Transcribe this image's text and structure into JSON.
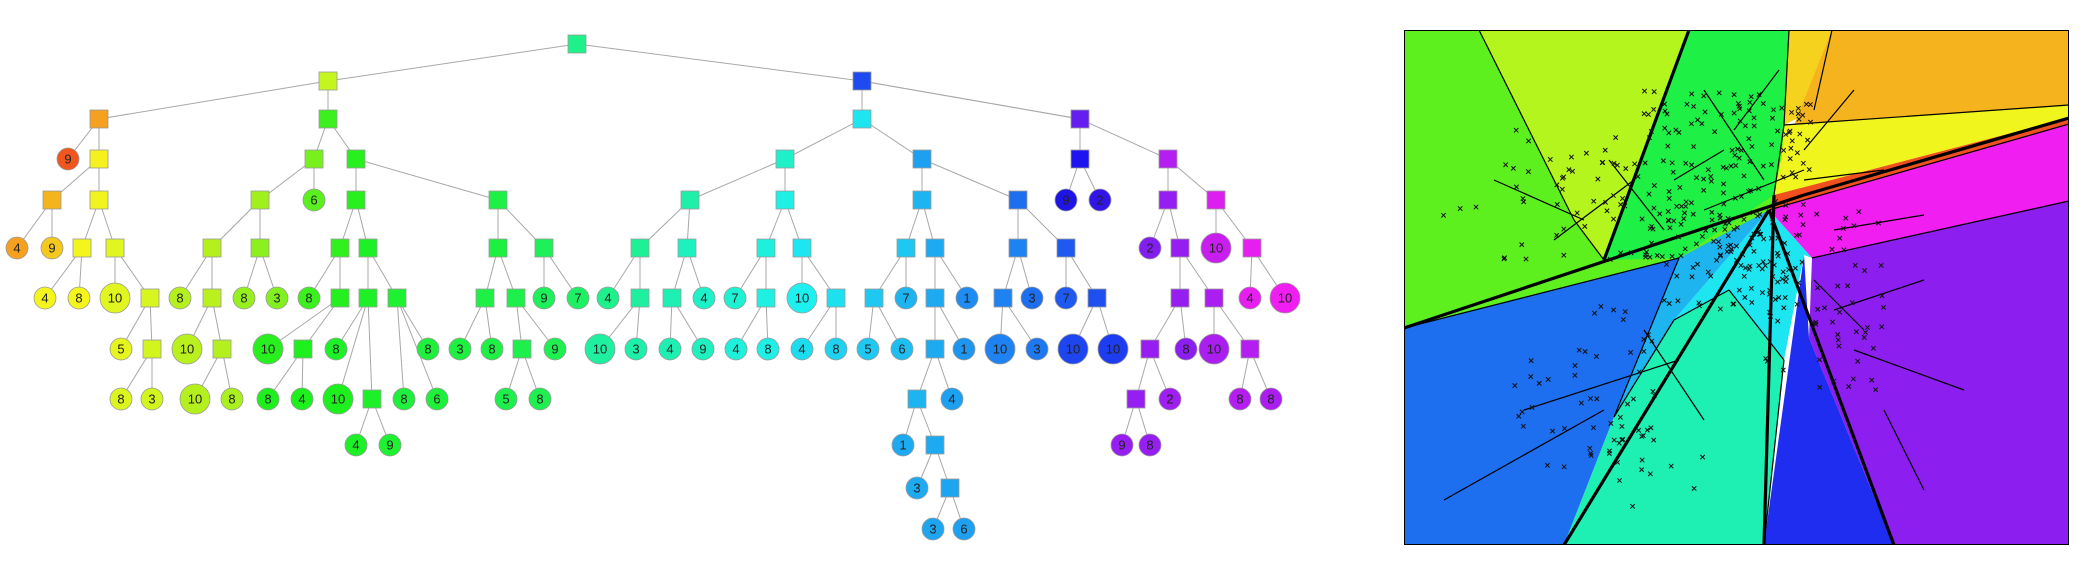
{
  "tree": {
    "nodes": [
      {
        "id": "root",
        "kind": "split",
        "color": "#1ef08a"
      },
      {
        "id": "L",
        "kind": "split",
        "color": "#c4f51e"
      },
      {
        "id": "R",
        "kind": "split",
        "color": "#1e4bf0"
      },
      {
        "id": "LL",
        "kind": "split",
        "color": "#f5a01e"
      },
      {
        "id": "LL_leaf9",
        "kind": "leaf",
        "label": "9",
        "color": "#f0561e"
      },
      {
        "id": "LLR",
        "kind": "split",
        "color": "#f5f01e"
      },
      {
        "id": "LLRL",
        "kind": "split",
        "color": "#f5b41e"
      },
      {
        "id": "l4a",
        "kind": "leaf",
        "label": "4",
        "color": "#f5a01e"
      },
      {
        "id": "l9a",
        "kind": "leaf",
        "label": "9",
        "color": "#f5c81e"
      },
      {
        "id": "LLRR",
        "kind": "split",
        "color": "#f0f51e"
      },
      {
        "id": "LLRRL",
        "kind": "split",
        "color": "#f5f51e"
      },
      {
        "id": "l4b",
        "kind": "leaf",
        "label": "4",
        "color": "#f5f51e"
      },
      {
        "id": "l8a",
        "kind": "leaf",
        "label": "8",
        "color": "#f5f51e"
      },
      {
        "id": "LLRRR",
        "kind": "split",
        "color": "#e1f51e"
      },
      {
        "id": "l10a",
        "kind": "leaf",
        "label": "10",
        "color": "#e1f51e"
      },
      {
        "id": "LLRRRR",
        "kind": "split",
        "color": "#d7f51e"
      },
      {
        "id": "l5a",
        "kind": "leaf",
        "label": "5",
        "color": "#e6f51e"
      },
      {
        "id": "LLRRRRR",
        "kind": "split",
        "color": "#d2f51e"
      },
      {
        "id": "l8b",
        "kind": "leaf",
        "label": "8",
        "color": "#dcf51e"
      },
      {
        "id": "l3a",
        "kind": "leaf",
        "label": "3",
        "color": "#d2f51e"
      },
      {
        "id": "LR",
        "kind": "split",
        "color": "#3cf01e"
      },
      {
        "id": "LRL",
        "kind": "split",
        "color": "#78f01e"
      },
      {
        "id": "LRLL",
        "kind": "split",
        "color": "#a0f01e"
      },
      {
        "id": "LRLLL",
        "kind": "split",
        "color": "#b4f01e"
      },
      {
        "id": "l8c",
        "kind": "leaf",
        "label": "8",
        "color": "#b4f01e"
      },
      {
        "id": "LRLLLR",
        "kind": "split",
        "color": "#b9f01e"
      },
      {
        "id": "l10b",
        "kind": "leaf",
        "label": "10",
        "color": "#b9f01e"
      },
      {
        "id": "LRLLLRR",
        "kind": "split",
        "color": "#b4f01e"
      },
      {
        "id": "l10c",
        "kind": "leaf",
        "label": "10",
        "color": "#b4f01e"
      },
      {
        "id": "l8d",
        "kind": "leaf",
        "label": "8",
        "color": "#aaf01e"
      },
      {
        "id": "LRLLR",
        "kind": "split",
        "color": "#8cf01e"
      },
      {
        "id": "l8e",
        "kind": "leaf",
        "label": "8",
        "color": "#96f01e"
      },
      {
        "id": "l3b",
        "kind": "leaf",
        "label": "3",
        "color": "#82f01e"
      },
      {
        "id": "l6a",
        "kind": "leaf",
        "label": "6",
        "color": "#5af01e"
      },
      {
        "id": "LRR",
        "kind": "split",
        "color": "#28f01e"
      },
      {
        "id": "LRRL",
        "kind": "split",
        "color": "#28f01e"
      },
      {
        "id": "LRRLL",
        "kind": "split",
        "color": "#32f01e"
      },
      {
        "id": "l8f",
        "kind": "leaf",
        "label": "8",
        "color": "#3cf01e"
      },
      {
        "id": "LRRLLR",
        "kind": "split",
        "color": "#23f01e"
      },
      {
        "id": "l10d",
        "kind": "leaf",
        "label": "10",
        "color": "#28f01e"
      },
      {
        "id": "LRRLLRR",
        "kind": "split",
        "color": "#1ef01e"
      },
      {
        "id": "l8g",
        "kind": "leaf",
        "label": "8",
        "color": "#1ef01e"
      },
      {
        "id": "l4c",
        "kind": "leaf",
        "label": "4",
        "color": "#1ef01e"
      },
      {
        "id": "LRRLR",
        "kind": "split",
        "color": "#1ef028"
      },
      {
        "id": "l8h",
        "kind": "leaf",
        "label": "8",
        "color": "#1ef028"
      },
      {
        "id": "LRRLRR",
        "kind": "split",
        "color": "#1ef028"
      },
      {
        "id": "l10e",
        "kind": "leaf",
        "label": "10",
        "color": "#1ef01e"
      },
      {
        "id": "LRRLRRR",
        "kind": "split",
        "color": "#1ef028"
      },
      {
        "id": "l4d",
        "kind": "leaf",
        "label": "4",
        "color": "#1ef028"
      },
      {
        "id": "l9b",
        "kind": "leaf",
        "label": "9",
        "color": "#1ef032"
      },
      {
        "id": "LRRLRRRR",
        "kind": "split",
        "color": "#1ef032"
      },
      {
        "id": "l8i",
        "kind": "leaf",
        "label": "8",
        "color": "#1ef03c"
      },
      {
        "id": "l6b",
        "kind": "leaf",
        "label": "6",
        "color": "#1ef03c"
      },
      {
        "id": "l8j",
        "kind": "leaf",
        "label": "8",
        "color": "#1ef03c"
      },
      {
        "id": "LRRR",
        "kind": "split",
        "color": "#1ef046"
      },
      {
        "id": "LRRRL",
        "kind": "split",
        "color": "#1ef041"
      },
      {
        "id": "LRRRLL",
        "kind": "split",
        "color": "#1ef046"
      },
      {
        "id": "l3c",
        "kind": "leaf",
        "label": "3",
        "color": "#1ef041"
      },
      {
        "id": "l8k",
        "kind": "leaf",
        "label": "8",
        "color": "#1ef046"
      },
      {
        "id": "LRRRLR",
        "kind": "split",
        "color": "#1ef04b"
      },
      {
        "id": "LRRRLRR",
        "kind": "split",
        "color": "#1ef04b"
      },
      {
        "id": "l5b",
        "kind": "leaf",
        "label": "5",
        "color": "#1ef04b"
      },
      {
        "id": "l8l",
        "kind": "leaf",
        "label": "8",
        "color": "#1ef050"
      },
      {
        "id": "l9c",
        "kind": "leaf",
        "label": "9",
        "color": "#1ef050"
      },
      {
        "id": "LRRRR",
        "kind": "split",
        "color": "#1ef05a"
      },
      {
        "id": "l9d",
        "kind": "leaf",
        "label": "9",
        "color": "#1ef05a"
      },
      {
        "id": "l7a",
        "kind": "leaf",
        "label": "7",
        "color": "#1ef064"
      },
      {
        "id": "RL",
        "kind": "split",
        "color": "#1ee6f0"
      },
      {
        "id": "RLL",
        "kind": "split",
        "color": "#1ef0c8"
      },
      {
        "id": "RLLL",
        "kind": "split",
        "color": "#1ef0aa"
      },
      {
        "id": "RLLLL",
        "kind": "split",
        "color": "#1ef096"
      },
      {
        "id": "l4e",
        "kind": "leaf",
        "label": "4",
        "color": "#1ef08c"
      },
      {
        "id": "RLLLLR",
        "kind": "split",
        "color": "#1ef0a0"
      },
      {
        "id": "l10f",
        "kind": "leaf",
        "label": "10",
        "color": "#1ef0a0"
      },
      {
        "id": "l3d",
        "kind": "leaf",
        "label": "3",
        "color": "#1ef0aa"
      },
      {
        "id": "RLLLR",
        "kind": "split",
        "color": "#1ef0be"
      },
      {
        "id": "RLLLRL",
        "kind": "split",
        "color": "#1ef0b4"
      },
      {
        "id": "l4f",
        "kind": "leaf",
        "label": "4",
        "color": "#1ef0b4"
      },
      {
        "id": "l9e",
        "kind": "leaf",
        "label": "9",
        "color": "#1ef0be"
      },
      {
        "id": "l4g",
        "kind": "leaf",
        "label": "4",
        "color": "#1ef0c8"
      },
      {
        "id": "RLLR",
        "kind": "split",
        "color": "#1ef0e6"
      },
      {
        "id": "RLLRL",
        "kind": "split",
        "color": "#1ef0dc"
      },
      {
        "id": "l7b",
        "kind": "leaf",
        "label": "7",
        "color": "#1ef0d2"
      },
      {
        "id": "RLLRLR",
        "kind": "split",
        "color": "#1ef0e1"
      },
      {
        "id": "l4h",
        "kind": "leaf",
        "label": "4",
        "color": "#1ef0dc"
      },
      {
        "id": "l8m",
        "kind": "leaf",
        "label": "8",
        "color": "#1ef0e6"
      },
      {
        "id": "RLLRR",
        "kind": "split",
        "color": "#1ee6f0"
      },
      {
        "id": "l10g",
        "kind": "leaf",
        "label": "10",
        "color": "#1ef0f0"
      },
      {
        "id": "RLLRRR",
        "kind": "split",
        "color": "#1ee1f0"
      },
      {
        "id": "l4i",
        "kind": "leaf",
        "label": "4",
        "color": "#1edcf0"
      },
      {
        "id": "l8n",
        "kind": "leaf",
        "label": "8",
        "color": "#1ed2f0"
      },
      {
        "id": "RLR",
        "kind": "split",
        "color": "#1ea0f0"
      },
      {
        "id": "RLRL",
        "kind": "split",
        "color": "#1eb4f0"
      },
      {
        "id": "RLRLL",
        "kind": "split",
        "color": "#1ec8f0"
      },
      {
        "id": "RLRLLL",
        "kind": "split",
        "color": "#1ec8f0"
      },
      {
        "id": "l5c",
        "kind": "leaf",
        "label": "5",
        "color": "#1ec8f0"
      },
      {
        "id": "l6c",
        "kind": "leaf",
        "label": "6",
        "color": "#1ebef0"
      },
      {
        "id": "l7c",
        "kind": "leaf",
        "label": "7",
        "color": "#1eb4f0"
      },
      {
        "id": "RLRLR",
        "kind": "split",
        "color": "#1eaaf0"
      },
      {
        "id": "RLRLRL",
        "kind": "split",
        "color": "#1eaaf0"
      },
      {
        "id": "RLRLRLL",
        "kind": "split",
        "color": "#1eaaf0"
      },
      {
        "id": "RLRLRLLL",
        "kind": "split",
        "color": "#1eb4f0"
      },
      {
        "id": "l1a",
        "kind": "leaf",
        "label": "1",
        "color": "#1eaaf0"
      },
      {
        "id": "RLRLRLLLR",
        "kind": "split",
        "color": "#1eaaf0"
      },
      {
        "id": "l3e",
        "kind": "leaf",
        "label": "3",
        "color": "#1eaaf0"
      },
      {
        "id": "RLRLRLLLRR",
        "kind": "split",
        "color": "#1ea5f0"
      },
      {
        "id": "l3f",
        "kind": "leaf",
        "label": "3",
        "color": "#1ea5f0"
      },
      {
        "id": "l6d",
        "kind": "leaf",
        "label": "6",
        "color": "#1ea0f0"
      },
      {
        "id": "l4j",
        "kind": "leaf",
        "label": "4",
        "color": "#1ea0f0"
      },
      {
        "id": "l1b",
        "kind": "leaf",
        "label": "1",
        "color": "#1e96f0"
      },
      {
        "id": "l1c",
        "kind": "leaf",
        "label": "1",
        "color": "#1e8cf0"
      },
      {
        "id": "RLRR",
        "kind": "split",
        "color": "#1e6ef0"
      },
      {
        "id": "RLRRL",
        "kind": "split",
        "color": "#1e82f0"
      },
      {
        "id": "RLRRLL",
        "kind": "split",
        "color": "#1e82f0"
      },
      {
        "id": "l10h",
        "kind": "leaf",
        "label": "10",
        "color": "#1e82f0"
      },
      {
        "id": "l3g",
        "kind": "leaf",
        "label": "3",
        "color": "#1e78f0"
      },
      {
        "id": "l3h",
        "kind": "leaf",
        "label": "3",
        "color": "#1e6ef0"
      },
      {
        "id": "RLRRR",
        "kind": "split",
        "color": "#1e5af0"
      },
      {
        "id": "l7d",
        "kind": "leaf",
        "label": "7",
        "color": "#1e5af0"
      },
      {
        "id": "RLRRRR",
        "kind": "split",
        "color": "#1e50f0"
      },
      {
        "id": "l10i",
        "kind": "leaf",
        "label": "10",
        "color": "#1e46f0"
      },
      {
        "id": "l10j",
        "kind": "leaf",
        "label": "10",
        "color": "#1e3cf0"
      },
      {
        "id": "RR",
        "kind": "split",
        "color": "#641ef0"
      },
      {
        "id": "RRL",
        "kind": "split",
        "color": "#1e14f0"
      },
      {
        "id": "l9f",
        "kind": "leaf",
        "label": "9",
        "color": "#1e14e6"
      },
      {
        "id": "l2a",
        "kind": "leaf",
        "label": "2",
        "color": "#3214e6"
      },
      {
        "id": "RRR",
        "kind": "split",
        "color": "#b41ef0"
      },
      {
        "id": "RRRL",
        "kind": "split",
        "color": "#961ef0"
      },
      {
        "id": "l2b",
        "kind": "leaf",
        "label": "2",
        "color": "#821ef0"
      },
      {
        "id": "RRRLR",
        "kind": "split",
        "color": "#961ef0"
      },
      {
        "id": "RRRLRL",
        "kind": "split",
        "color": "#961ef0"
      },
      {
        "id": "RRRLRLL",
        "kind": "split",
        "color": "#961ef0"
      },
      {
        "id": "RRRLRLLL",
        "kind": "split",
        "color": "#961ef0"
      },
      {
        "id": "l9g",
        "kind": "leaf",
        "label": "9",
        "color": "#961ef0"
      },
      {
        "id": "l8o",
        "kind": "leaf",
        "label": "8",
        "color": "#961ef0"
      },
      {
        "id": "l2c",
        "kind": "leaf",
        "label": "2",
        "color": "#a01ef0"
      },
      {
        "id": "l8p",
        "kind": "leaf",
        "label": "8",
        "color": "#8c1ef0"
      },
      {
        "id": "RRRR",
        "kind": "split",
        "color": "#dc1ef0"
      },
      {
        "id": "l10k",
        "kind": "leaf",
        "label": "10",
        "color": "#c81ef0"
      },
      {
        "id": "RRRRR",
        "kind": "split",
        "color": "#e61ef0"
      },
      {
        "id": "l4k",
        "kind": "leaf",
        "label": "4",
        "color": "#e61ef0"
      },
      {
        "id": "l10l",
        "kind": "leaf",
        "label": "10",
        "color": "#f01ef0"
      },
      {
        "id": "RRRLRR",
        "kind": "split",
        "color": "#aa1ef0"
      },
      {
        "id": "l10m",
        "kind": "leaf",
        "label": "10",
        "color": "#aa1ef0"
      },
      {
        "id": "RRRLRRR",
        "kind": "split",
        "color": "#b41ef0"
      },
      {
        "id": "l8q",
        "kind": "leaf",
        "label": "8",
        "color": "#b41ef0"
      },
      {
        "id": "l8r",
        "kind": "leaf",
        "label": "8",
        "color": "#aa1ef0"
      }
    ]
  },
  "partition": {
    "regions": [
      {
        "id": "green-left",
        "color": "#5ef01e"
      },
      {
        "id": "yellowgreen",
        "color": "#b4f51e"
      },
      {
        "id": "green-mid",
        "color": "#1ef046"
      },
      {
        "id": "gold",
        "color": "#f5d21e"
      },
      {
        "id": "orange",
        "color": "#f5b41e"
      },
      {
        "id": "yellow",
        "color": "#f0f51e"
      },
      {
        "id": "red-orange",
        "color": "#f0501e"
      },
      {
        "id": "magenta",
        "color": "#f01ef0"
      },
      {
        "id": "violet",
        "color": "#8c1ef0"
      },
      {
        "id": "blue-left",
        "color": "#1e6ef0"
      },
      {
        "id": "blue-deep",
        "color": "#1e2df0"
      },
      {
        "id": "teal",
        "color": "#1ef0b4"
      },
      {
        "id": "cyan",
        "color": "#1ee6f0"
      },
      {
        "id": "sky",
        "color": "#1eb4f0"
      }
    ]
  }
}
